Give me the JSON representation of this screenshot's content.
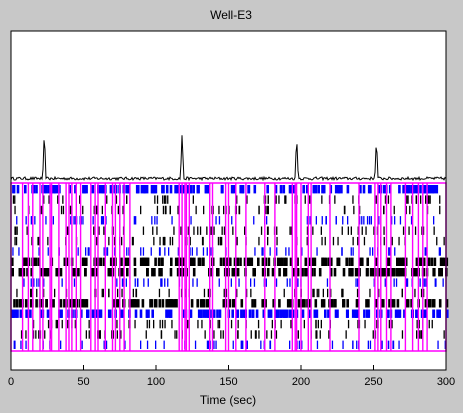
{
  "window": {
    "figure_title": "Well-E3",
    "background_color": "#c8c8c8",
    "axes_background": "#ffffff"
  },
  "chart_data": {
    "type": "raster",
    "title": "Well-E3",
    "xlabel": "Time (sec)",
    "ylabel": "",
    "xlim": [
      0,
      300
    ],
    "x_ticks": [
      0,
      50,
      100,
      150,
      200,
      250,
      300
    ],
    "trace": {
      "name": "",
      "color": "#000000",
      "baseline": 0.08,
      "peaks": [
        {
          "x": 23,
          "y": 1.0
        },
        {
          "x": 118,
          "y": 0.95
        },
        {
          "x": 197,
          "y": 0.9
        },
        {
          "x": 252,
          "y": 0.85
        }
      ]
    },
    "raster": {
      "rows": 16,
      "colors": [
        "#000000",
        "#0000ff"
      ],
      "dense_rows": [
        0,
        7,
        8,
        11,
        12
      ]
    },
    "bursts": {
      "color": "#ff00ff",
      "times": [
        8,
        12,
        15,
        20,
        22,
        27,
        28,
        33,
        38,
        40,
        42,
        45,
        48,
        55,
        58,
        60,
        65,
        70,
        72,
        75,
        78,
        82,
        116,
        118,
        120,
        121,
        123,
        137,
        139,
        148,
        150,
        155,
        162,
        175,
        182,
        194,
        196,
        197,
        200,
        205,
        207,
        220,
        240,
        251,
        253,
        255,
        259,
        262,
        272,
        277,
        281,
        284,
        287
      ]
    }
  }
}
